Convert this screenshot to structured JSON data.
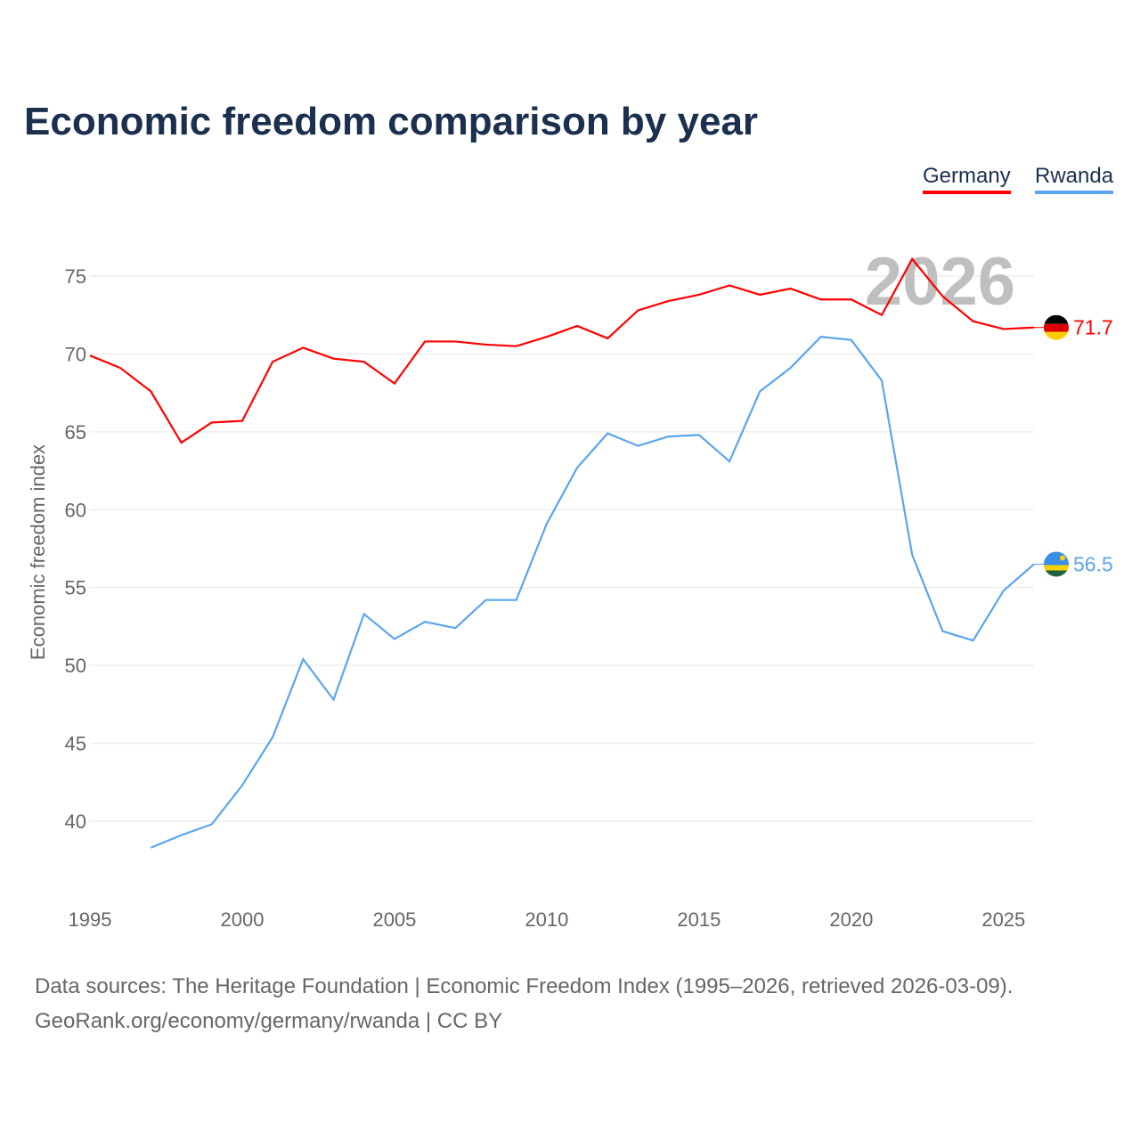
{
  "title": "Economic freedom comparison by year",
  "legend": [
    "Germany",
    "Rwanda"
  ],
  "footer": {
    "line1": "Data sources: The Heritage Foundation | Economic Freedom Index (1995–2026, retrieved 2026-03-09).",
    "line2": "GeoRank.org/economy/germany/rwanda | CC BY"
  },
  "chart_data": {
    "type": "line",
    "title": "Economic freedom comparison by year",
    "xlabel": "",
    "ylabel": "Economic freedom index",
    "xlim": [
      1995,
      2026
    ],
    "ylim": [
      35,
      78
    ],
    "x_ticks": [
      1995,
      2000,
      2005,
      2010,
      2015,
      2020,
      2025
    ],
    "y_ticks": [
      40,
      45,
      50,
      55,
      60,
      65,
      70,
      75
    ],
    "watermark_year": "2026",
    "series": [
      {
        "name": "Germany",
        "color": "#ff0000",
        "end_label": "71.7",
        "x": [
          1995,
          1996,
          1997,
          1998,
          1999,
          2000,
          2001,
          2002,
          2003,
          2004,
          2005,
          2006,
          2007,
          2008,
          2009,
          2010,
          2011,
          2012,
          2013,
          2014,
          2015,
          2016,
          2017,
          2018,
          2019,
          2020,
          2021,
          2022,
          2023,
          2024,
          2025,
          2026
        ],
        "values": [
          69.9,
          69.1,
          67.6,
          64.3,
          65.6,
          65.7,
          69.5,
          70.4,
          69.7,
          69.5,
          68.1,
          70.8,
          70.8,
          70.6,
          70.5,
          71.1,
          71.8,
          71.0,
          72.8,
          73.4,
          73.8,
          74.4,
          73.8,
          74.2,
          73.5,
          73.5,
          72.5,
          76.1,
          73.7,
          72.1,
          71.6,
          71.7
        ]
      },
      {
        "name": "Rwanda",
        "color": "#5aa5ee",
        "end_label": "56.5",
        "x": [
          1997,
          1998,
          1999,
          2000,
          2001,
          2002,
          2003,
          2004,
          2005,
          2006,
          2007,
          2008,
          2009,
          2010,
          2011,
          2012,
          2013,
          2014,
          2015,
          2016,
          2017,
          2018,
          2019,
          2020,
          2021,
          2022,
          2023,
          2024,
          2025,
          2026
        ],
        "values": [
          38.3,
          39.1,
          39.8,
          42.3,
          45.4,
          50.4,
          47.8,
          53.3,
          51.7,
          52.8,
          52.4,
          54.2,
          54.2,
          59.1,
          62.7,
          64.9,
          64.1,
          64.7,
          64.8,
          63.1,
          67.6,
          69.1,
          71.1,
          70.9,
          68.3,
          57.1,
          52.2,
          51.6,
          54.8,
          56.5
        ]
      }
    ]
  }
}
